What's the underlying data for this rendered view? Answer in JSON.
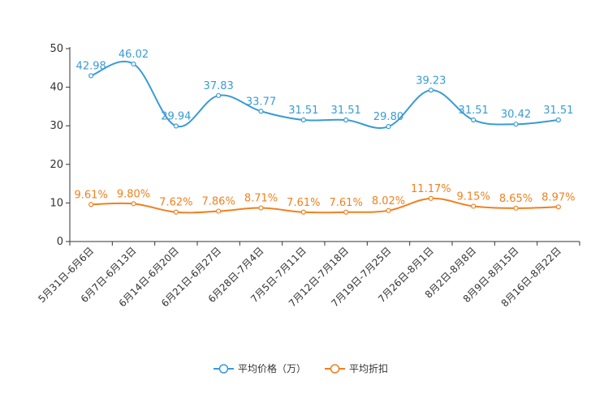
{
  "chart_data": {
    "type": "line",
    "title": "",
    "xlabel": "",
    "ylabel": "",
    "ylim": [
      0,
      50
    ],
    "yticks": [
      0,
      10,
      20,
      30,
      40,
      50
    ],
    "grid": false,
    "legend_position": "bottom",
    "categories": [
      "5月31日-6月6日",
      "6月7日-6月13日",
      "6月14日-6月20日",
      "6月21日-6月27日",
      "6月28日-7月4日",
      "7月5日-7月11日",
      "7月12日-7月18日",
      "7月19日-7月25日",
      "7月26日-8月1日",
      "8月2日-8月8日",
      "8月9日-8月15日",
      "8月16日-8月22日"
    ],
    "series": [
      {
        "name": "平均价格（万）",
        "color": "#3a9bd5",
        "values": [
          42.98,
          46.02,
          29.94,
          37.83,
          33.77,
          31.51,
          31.51,
          29.8,
          39.23,
          31.51,
          30.42,
          31.51
        ],
        "labels": [
          "42.98",
          "46.02",
          "29.94",
          "37.83",
          "33.77",
          "31.51",
          "31.51",
          "29.80",
          "39.23",
          "31.51",
          "30.42",
          "31.51"
        ]
      },
      {
        "name": "平均折扣",
        "color": "#f0801f",
        "values": [
          9.61,
          9.8,
          7.62,
          7.86,
          8.71,
          7.61,
          7.61,
          8.02,
          11.17,
          9.15,
          8.65,
          8.97
        ],
        "labels": [
          "9.61%",
          "9.80%",
          "7.62%",
          "7.86%",
          "8.71%",
          "7.61%",
          "7.61%",
          "8.02%",
          "11.17%",
          "9.15%",
          "8.65%",
          "8.97%"
        ]
      }
    ]
  }
}
